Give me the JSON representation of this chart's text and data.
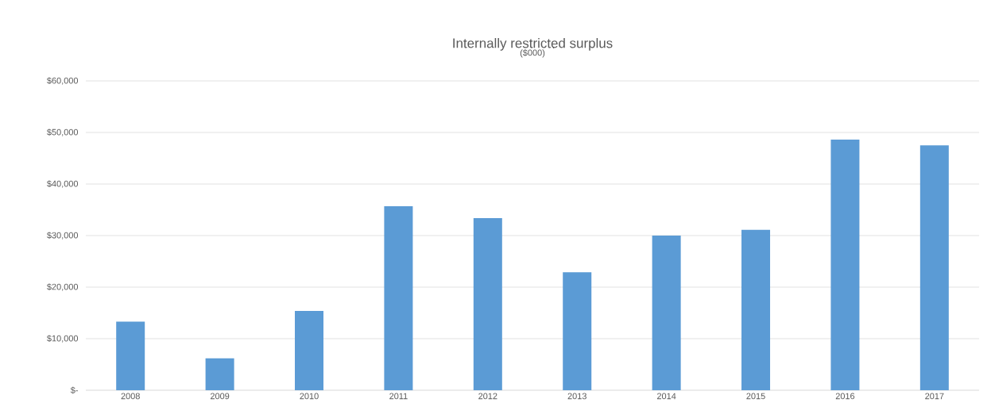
{
  "chart_data": {
    "type": "bar",
    "title": "Internally restricted surplus",
    "subtitle": "($000)",
    "categories": [
      "2008",
      "2009",
      "2010",
      "2011",
      "2012",
      "2013",
      "2014",
      "2015",
      "2016",
      "2017"
    ],
    "values": [
      13300,
      6200,
      15400,
      35700,
      33400,
      22900,
      30000,
      31100,
      48600,
      47500
    ],
    "color": "#5b9bd5",
    "ylim": [
      0,
      60000
    ],
    "yticks": [
      {
        "value": 0,
        "label": "$-"
      },
      {
        "value": 10000,
        "label": "$10,000"
      },
      {
        "value": 20000,
        "label": "$20,000"
      },
      {
        "value": 30000,
        "label": "$30,000"
      },
      {
        "value": 40000,
        "label": "$40,000"
      },
      {
        "value": 50000,
        "label": "$50,000"
      },
      {
        "value": 60000,
        "label": "$60,000"
      }
    ],
    "grid": "y"
  }
}
